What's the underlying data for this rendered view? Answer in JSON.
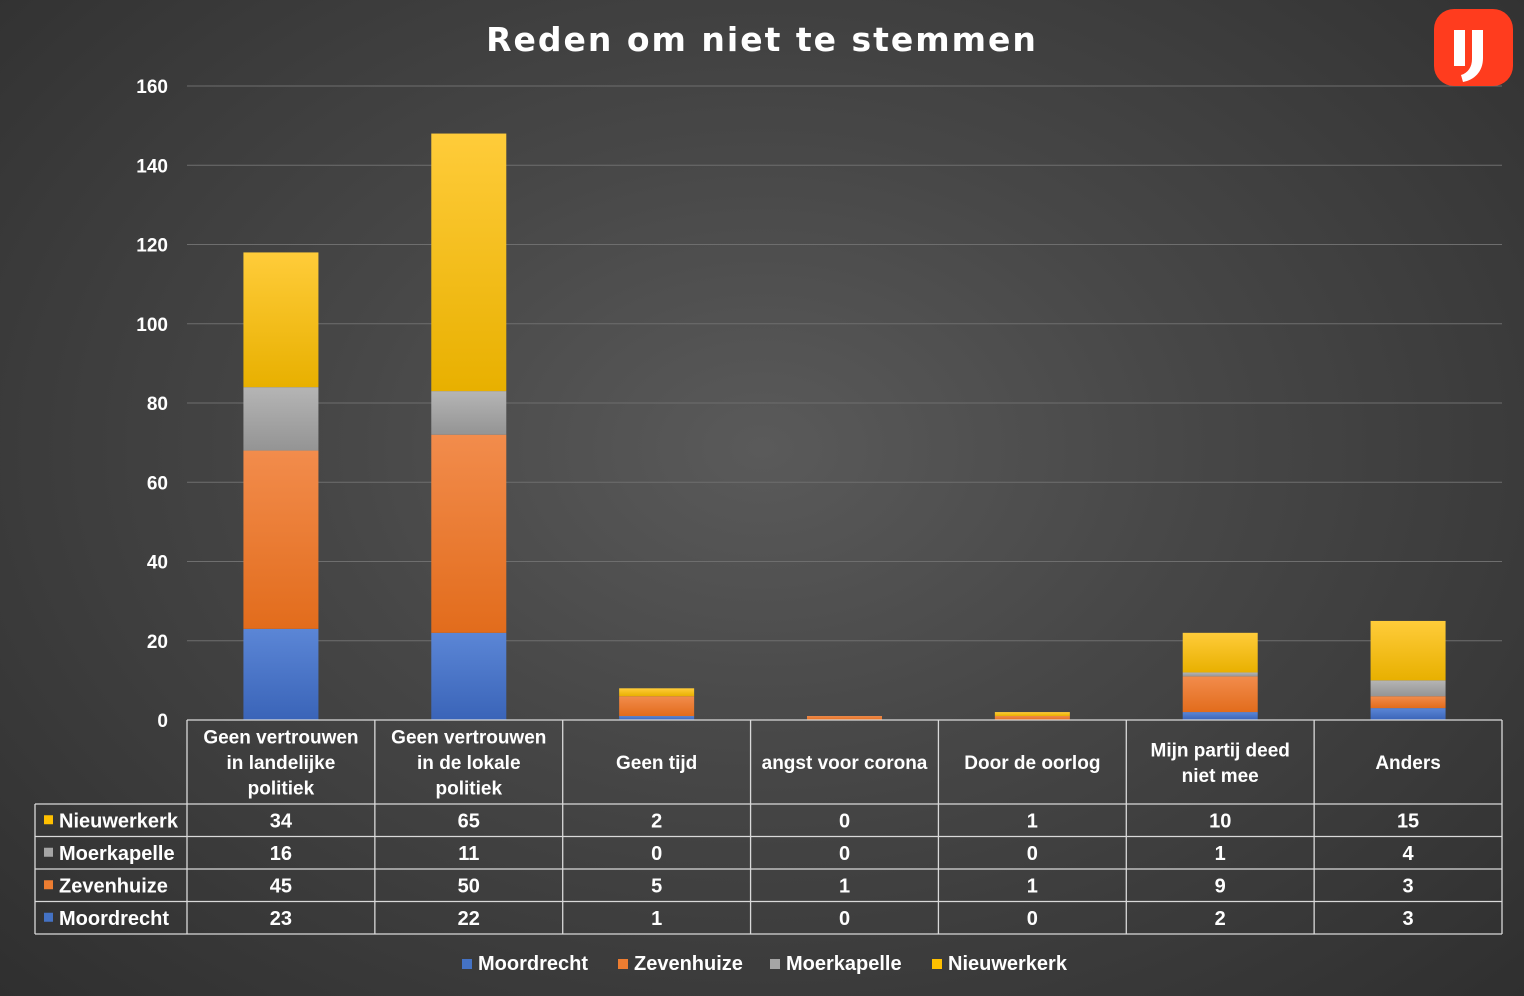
{
  "logo": {
    "icon": "ij-logo-icon",
    "color": "#ff3c1e"
  },
  "chart_data": {
    "type": "bar",
    "stacked": true,
    "title": "Reden om niet te stemmen",
    "categories": [
      [
        "Geen vertrouwen",
        "in landelijke",
        "politiek"
      ],
      [
        "Geen vertrouwen",
        "in de lokale",
        "politiek"
      ],
      [
        "Geen tijd"
      ],
      [
        "angst voor corona"
      ],
      [
        "Door de oorlog"
      ],
      [
        "Mijn partij deed",
        "niet mee"
      ],
      [
        "Anders"
      ]
    ],
    "series": [
      {
        "name": "Moordrecht",
        "color": "#4472c4",
        "values": [
          23,
          22,
          1,
          0,
          0,
          2,
          3
        ]
      },
      {
        "name": "Zevenhuize",
        "color": "#ed7d31",
        "values": [
          45,
          50,
          5,
          1,
          1,
          9,
          3
        ]
      },
      {
        "name": "Moerkapelle",
        "color": "#a5a5a5",
        "values": [
          16,
          11,
          0,
          0,
          0,
          1,
          4
        ]
      },
      {
        "name": "Nieuwerkerk",
        "color": "#ffc000",
        "values": [
          34,
          65,
          2,
          0,
          1,
          10,
          15
        ]
      }
    ],
    "ylim": [
      0,
      160
    ],
    "yticks": [
      0,
      20,
      40,
      60,
      80,
      100,
      120,
      140,
      160
    ],
    "grid": true,
    "legend": "bottom",
    "data_table": true
  }
}
